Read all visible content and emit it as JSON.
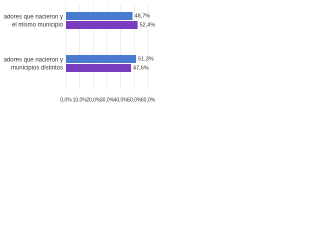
{
  "chart_data": {
    "type": "hbar",
    "categories": [
      [
        "adores que nacieron y",
        "el mismo municipio"
      ],
      [
        "adores que nacieron y",
        "municipios distintos"
      ]
    ],
    "series": [
      {
        "color": "#4a7bd0",
        "values": [
          48.7,
          51.3
        ],
        "value_labels": [
          "48,7%",
          "51,3%"
        ]
      },
      {
        "color": "#7a3dbf",
        "values": [
          52.4,
          47.6
        ],
        "value_labels": [
          "52,4%",
          "47,6%"
        ]
      }
    ],
    "xlim": [
      0,
      60
    ],
    "xticks": [
      {
        "value": 0,
        "label": "0,0%"
      },
      {
        "value": 10,
        "label": "10,0%"
      },
      {
        "value": 20,
        "label": "20,0%"
      },
      {
        "value": 30,
        "label": "30,0%"
      },
      {
        "value": 40,
        "label": "40,0%"
      },
      {
        "value": 50,
        "label": "50,0%"
      },
      {
        "value": 60,
        "label": "60,0%"
      }
    ],
    "grid": true
  }
}
